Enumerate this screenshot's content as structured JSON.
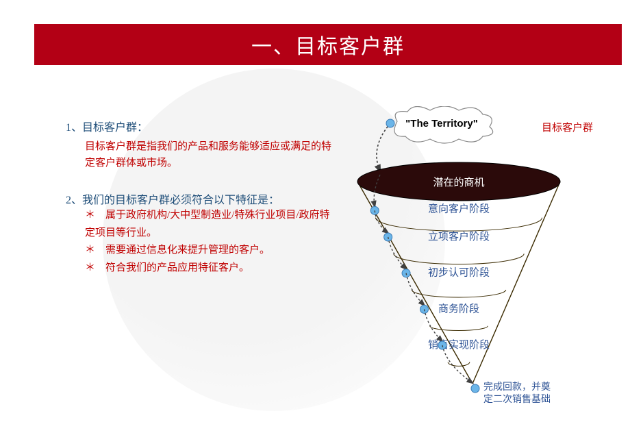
{
  "header": {
    "title": "一、目标客户群",
    "bg_color": "#b30015",
    "title_color": "#ffffff",
    "title_fontsize": 30
  },
  "globe": {
    "opacity": 0.55,
    "gray": "#c8c8c8"
  },
  "left_content": {
    "section1": {
      "num": "1、",
      "title": "目标客户群：",
      "body": "目标客户群是指我们的产品和服务能够适应或满足的特定客户群体或市场。",
      "title_color": "#1f4e79",
      "body_color": "#c00000",
      "fontsize": 16
    },
    "section2": {
      "num": "2、",
      "title": "我们的目标客户群必须符合以下特征是：",
      "bullets": [
        "＊　属于政府机构/大中型制造业/特殊行业项目/政府特定项目等行业。",
        "＊　需要通过信息化来提升管理的客户。",
        "＊　符合我们的产品应用特征客户。"
      ],
      "title_color": "#1f4e79",
      "bullet_color": "#c00000",
      "fontsize": 16
    }
  },
  "funnel": {
    "cloud": {
      "text": "\"The Territory\"",
      "outside_label": "目标客户群",
      "fill": "#ffffff",
      "stroke": "#888888",
      "text_color": "#000000",
      "label_color": "#c00000"
    },
    "top_ellipse": {
      "fill": "#2b0a0a",
      "label": "潜在的商机",
      "label_color": "#ffffff"
    },
    "stages": [
      {
        "label": "意向客户阶段"
      },
      {
        "label": "立项客户阶段"
      },
      {
        "label": "初步认可阶段"
      },
      {
        "label": "商务阶段"
      },
      {
        "label": "销售实现阶段"
      }
    ],
    "aftersale": {
      "label": "完成回款，并奠定二次销售基础"
    },
    "stage_label_color": "#2f5496",
    "stage_fontsize": 15,
    "funnel_stroke": "#3a2a00",
    "funnel_stroke_width": 1,
    "dot_fill": "#6bb5e8",
    "dot_stroke": "#3a7ab5",
    "arrow_color": "#404040"
  }
}
